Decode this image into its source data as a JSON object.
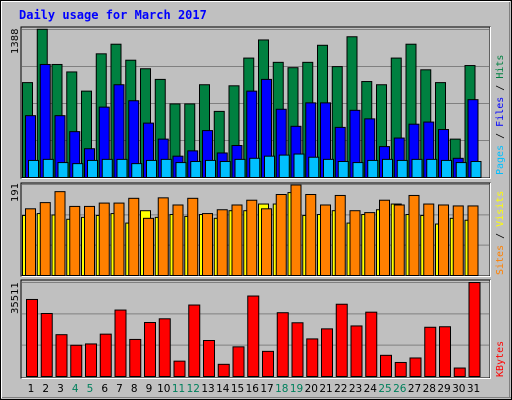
{
  "chart_data": {
    "type": "bar",
    "title": "Daily usage for March 2017",
    "categories": [
      "1",
      "2",
      "3",
      "4",
      "5",
      "6",
      "7",
      "8",
      "9",
      "10",
      "11",
      "12",
      "13",
      "14",
      "15",
      "16",
      "17",
      "18",
      "19",
      "20",
      "21",
      "22",
      "23",
      "24",
      "25",
      "26",
      "27",
      "28",
      "29",
      "30",
      "31"
    ],
    "weekend_days": [
      "4",
      "5",
      "11",
      "12",
      "18",
      "19",
      "25",
      "26"
    ],
    "panels": [
      {
        "max_label": "1388",
        "ymax": 1388,
        "legend": [
          "Pages",
          "Files",
          "Hits"
        ],
        "legend_colors": [
          "#00c0ff",
          "#0000ff",
          "#008040"
        ],
        "series": [
          {
            "name": "Hits",
            "color": "#008040",
            "values": [
              890,
              1390,
              1060,
              990,
              810,
              1160,
              1250,
              1100,
              1020,
              920,
              690,
              690,
              870,
              620,
              860,
              1120,
              1290,
              1080,
              1030,
              1080,
              1240,
              1040,
              1320,
              900,
              870,
              1120,
              1250,
              1010,
              890,
              360,
              1050
            ]
          },
          {
            "name": "Files",
            "color": "#0000ff",
            "values": [
              580,
              1060,
              580,
              430,
              270,
              660,
              870,
              720,
              510,
              360,
              200,
              250,
              440,
              230,
              300,
              810,
              920,
              640,
              480,
              700,
              700,
              470,
              630,
              550,
              290,
              370,
              500,
              520,
              450,
              180,
              730
            ]
          },
          {
            "name": "Pages",
            "color": "#00c0ff",
            "values": [
              160,
              170,
              140,
              130,
              160,
              170,
              170,
              130,
              160,
              170,
              140,
              150,
              160,
              150,
              170,
              180,
              200,
              210,
              220,
              190,
              170,
              150,
              140,
              160,
              170,
              160,
              170,
              170,
              160,
              140,
              150
            ]
          }
        ]
      },
      {
        "max_label": "191",
        "ymax": 191,
        "legend": [
          "Sites",
          "Visits"
        ],
        "legend_colors": [
          "#ff8000",
          "#ffff00"
        ],
        "series": [
          {
            "name": "Visits",
            "color": "#ffff00",
            "values": [
              126,
              130,
              127,
              118,
              122,
              126,
              130,
              110,
              136,
              122,
              128,
              124,
              128,
              120,
              136,
              136,
              150,
              150,
              174,
              126,
              128,
              136,
              110,
              128,
              138,
              150,
              128,
              126,
              108,
              120,
              116
            ]
          },
          {
            "name": "Sites",
            "color": "#ff8000",
            "values": [
              140,
              153,
              176,
              145,
              145,
              152,
              152,
              162,
              120,
              163,
              148,
              162,
              130,
              138,
              148,
              158,
              140,
              170,
              190,
              170,
              148,
              168,
              136,
              132,
              158,
              148,
              168,
              150,
              148,
              146,
              146
            ]
          }
        ]
      },
      {
        "max_label": "35511",
        "ymax": 35511,
        "legend": [
          "KBytes"
        ],
        "legend_colors": [
          "#ff0000"
        ],
        "series": [
          {
            "name": "KBytes",
            "color": "#ff0000",
            "values": [
              29100,
              23800,
              15800,
              11800,
              12300,
              16000,
              25100,
              14000,
              20400,
              21800,
              5800,
              27000,
              13600,
              4600,
              11200,
              30400,
              9500,
              24100,
              20300,
              14200,
              18000,
              27300,
              19100,
              24300,
              8000,
              5300,
              7000,
              18600,
              18800,
              3200,
              35500
            ]
          }
        ]
      }
    ]
  }
}
